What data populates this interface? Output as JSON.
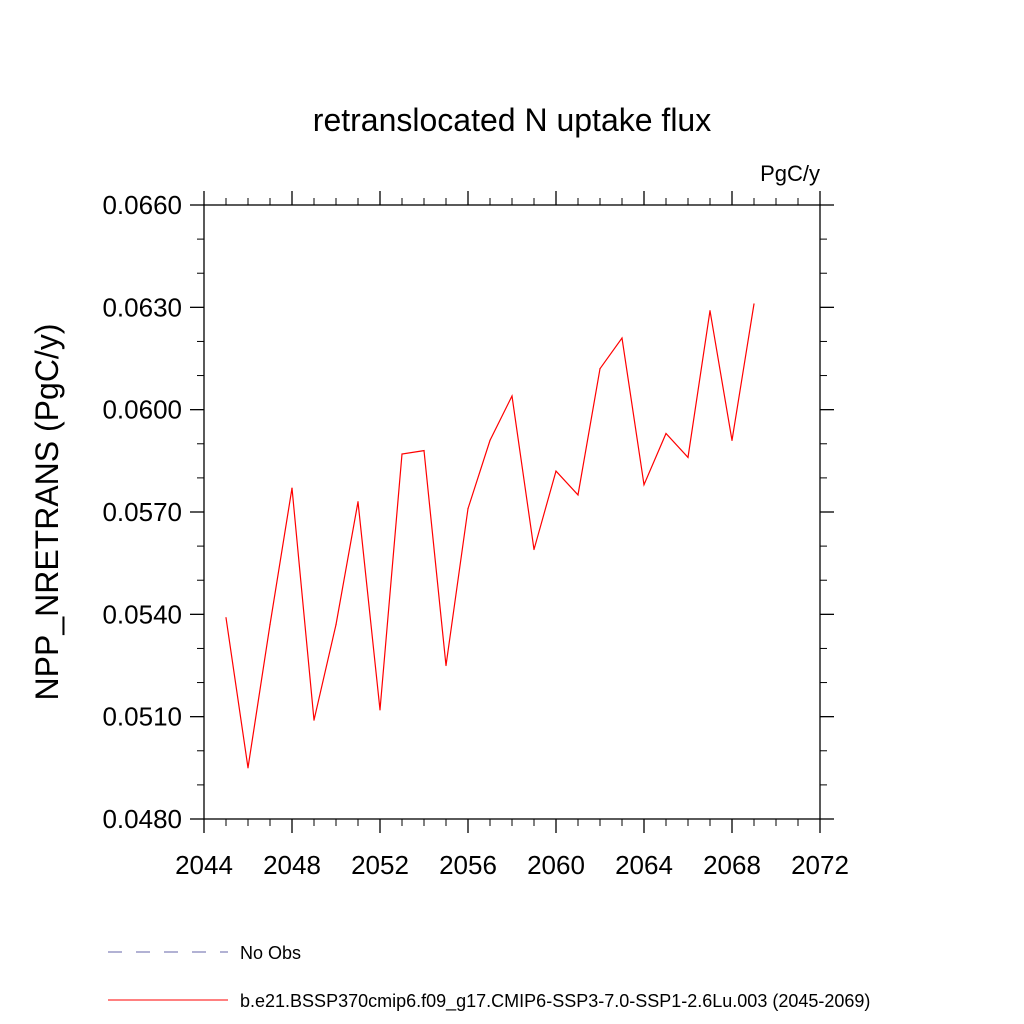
{
  "chart_data": {
    "type": "line",
    "title": "retranslocated N uptake flux",
    "units_label": "PgC/y",
    "ylabel": "NPP_NRETRANS  (PgC/y)",
    "xlabel": "",
    "xlim": [
      2044,
      2072
    ],
    "ylim": [
      0.048,
      0.066
    ],
    "x_ticks": [
      2044,
      2048,
      2052,
      2056,
      2060,
      2064,
      2068,
      2072
    ],
    "x_tick_labels": [
      "2044",
      "2048",
      "2052",
      "2056",
      "2060",
      "2064",
      "2068",
      "2072"
    ],
    "y_ticks": [
      0.048,
      0.051,
      0.054,
      0.057,
      0.06,
      0.063,
      0.066
    ],
    "y_tick_labels": [
      "0.0480",
      "0.0510",
      "0.0540",
      "0.0570",
      "0.0600",
      "0.0630",
      "0.0660"
    ],
    "grid": false,
    "legend_placement": "bottom",
    "series": [
      {
        "name": "b.e21.BSSP370cmip6.f09_g17.CMIP6-SSP3-7.0-SSP1-2.6Lu.003 (2045-2069)",
        "color": "#ff0000",
        "x": [
          2045,
          2046,
          2047,
          2048,
          2049,
          2050,
          2051,
          2052,
          2053,
          2054,
          2055,
          2056,
          2057,
          2058,
          2059,
          2060,
          2061,
          2062,
          2063,
          2064,
          2065,
          2066,
          2067,
          2068,
          2069
        ],
        "values": [
          0.0539,
          0.0495,
          0.0537,
          0.0577,
          0.0509,
          0.0537,
          0.0573,
          0.0512,
          0.0587,
          0.0588,
          0.0525,
          0.0571,
          0.0591,
          0.0604,
          0.0559,
          0.0582,
          0.0575,
          0.0612,
          0.0621,
          0.0578,
          0.0593,
          0.0586,
          0.0629,
          0.0591,
          0.0631
        ]
      }
    ],
    "legend": [
      {
        "label": "No Obs",
        "color": "#6666aa",
        "style": "dashed"
      },
      {
        "label": "b.e21.BSSP370cmip6.f09_g17.CMIP6-SSP3-7.0-SSP1-2.6Lu.003 (2045-2069)",
        "color": "#ff0000",
        "style": "solid"
      }
    ]
  }
}
